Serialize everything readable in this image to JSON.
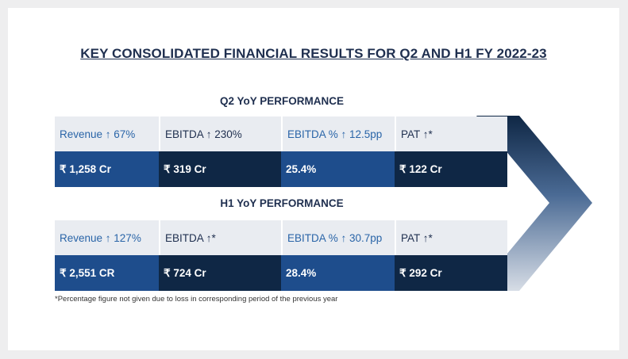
{
  "title": "KEY CONSOLIDATED FINANCIAL RESULTS FOR Q2 AND H1 FY 2022-23",
  "q2": {
    "heading": "Q2 YoY PERFORMANCE",
    "labels": [
      "Revenue ↑ 67%",
      "EBITDA ↑ 230%",
      "EBITDA % ↑ 12.5pp",
      "PAT ↑*"
    ],
    "values": [
      "₹ 1,258 Cr",
      "₹ 319 Cr",
      "25.4%",
      "₹ 122 Cr"
    ]
  },
  "h1": {
    "heading": "H1 YoY PERFORMANCE",
    "labels": [
      "Revenue ↑ 127%",
      "EBITDA ↑*",
      "EBITDA % ↑ 30.7pp",
      "PAT ↑*"
    ],
    "values": [
      "₹ 2,551 CR",
      "₹ 724 Cr",
      "28.4%",
      "₹ 292 Cr"
    ]
  },
  "footnote": "*Percentage figure not given due to loss in corresponding period of the previous year",
  "colors": {
    "title": "#1f2f4f",
    "label_text": "#2a65a8",
    "label_bg": "#e9ecf1",
    "value_blue": "#1e4d8c",
    "value_navy": "#0f2745"
  },
  "icons": {
    "arrow": "chevron-arrow-graphic"
  }
}
